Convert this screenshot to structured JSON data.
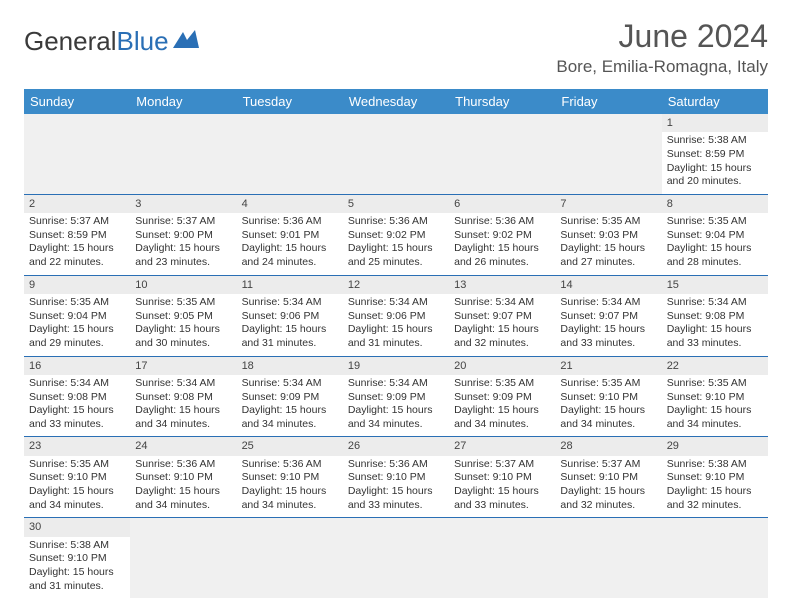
{
  "logo": {
    "text1": "General",
    "text2": "Blue"
  },
  "title": "June 2024",
  "location": "Bore, Emilia-Romagna, Italy",
  "colors": {
    "header_bg": "#3b8bc9",
    "border": "#2a6fb5",
    "daynum_bg": "#ececec",
    "empty_bg": "#f0f0f0"
  },
  "dayHeaders": [
    "Sunday",
    "Monday",
    "Tuesday",
    "Wednesday",
    "Thursday",
    "Friday",
    "Saturday"
  ],
  "weeks": [
    [
      null,
      null,
      null,
      null,
      null,
      null,
      {
        "n": "1",
        "sr": "5:38 AM",
        "ss": "8:59 PM",
        "dl": "15 hours and 20 minutes."
      }
    ],
    [
      {
        "n": "2",
        "sr": "5:37 AM",
        "ss": "8:59 PM",
        "dl": "15 hours and 22 minutes."
      },
      {
        "n": "3",
        "sr": "5:37 AM",
        "ss": "9:00 PM",
        "dl": "15 hours and 23 minutes."
      },
      {
        "n": "4",
        "sr": "5:36 AM",
        "ss": "9:01 PM",
        "dl": "15 hours and 24 minutes."
      },
      {
        "n": "5",
        "sr": "5:36 AM",
        "ss": "9:02 PM",
        "dl": "15 hours and 25 minutes."
      },
      {
        "n": "6",
        "sr": "5:36 AM",
        "ss": "9:02 PM",
        "dl": "15 hours and 26 minutes."
      },
      {
        "n": "7",
        "sr": "5:35 AM",
        "ss": "9:03 PM",
        "dl": "15 hours and 27 minutes."
      },
      {
        "n": "8",
        "sr": "5:35 AM",
        "ss": "9:04 PM",
        "dl": "15 hours and 28 minutes."
      }
    ],
    [
      {
        "n": "9",
        "sr": "5:35 AM",
        "ss": "9:04 PM",
        "dl": "15 hours and 29 minutes."
      },
      {
        "n": "10",
        "sr": "5:35 AM",
        "ss": "9:05 PM",
        "dl": "15 hours and 30 minutes."
      },
      {
        "n": "11",
        "sr": "5:34 AM",
        "ss": "9:06 PM",
        "dl": "15 hours and 31 minutes."
      },
      {
        "n": "12",
        "sr": "5:34 AM",
        "ss": "9:06 PM",
        "dl": "15 hours and 31 minutes."
      },
      {
        "n": "13",
        "sr": "5:34 AM",
        "ss": "9:07 PM",
        "dl": "15 hours and 32 minutes."
      },
      {
        "n": "14",
        "sr": "5:34 AM",
        "ss": "9:07 PM",
        "dl": "15 hours and 33 minutes."
      },
      {
        "n": "15",
        "sr": "5:34 AM",
        "ss": "9:08 PM",
        "dl": "15 hours and 33 minutes."
      }
    ],
    [
      {
        "n": "16",
        "sr": "5:34 AM",
        "ss": "9:08 PM",
        "dl": "15 hours and 33 minutes."
      },
      {
        "n": "17",
        "sr": "5:34 AM",
        "ss": "9:08 PM",
        "dl": "15 hours and 34 minutes."
      },
      {
        "n": "18",
        "sr": "5:34 AM",
        "ss": "9:09 PM",
        "dl": "15 hours and 34 minutes."
      },
      {
        "n": "19",
        "sr": "5:34 AM",
        "ss": "9:09 PM",
        "dl": "15 hours and 34 minutes."
      },
      {
        "n": "20",
        "sr": "5:35 AM",
        "ss": "9:09 PM",
        "dl": "15 hours and 34 minutes."
      },
      {
        "n": "21",
        "sr": "5:35 AM",
        "ss": "9:10 PM",
        "dl": "15 hours and 34 minutes."
      },
      {
        "n": "22",
        "sr": "5:35 AM",
        "ss": "9:10 PM",
        "dl": "15 hours and 34 minutes."
      }
    ],
    [
      {
        "n": "23",
        "sr": "5:35 AM",
        "ss": "9:10 PM",
        "dl": "15 hours and 34 minutes."
      },
      {
        "n": "24",
        "sr": "5:36 AM",
        "ss": "9:10 PM",
        "dl": "15 hours and 34 minutes."
      },
      {
        "n": "25",
        "sr": "5:36 AM",
        "ss": "9:10 PM",
        "dl": "15 hours and 34 minutes."
      },
      {
        "n": "26",
        "sr": "5:36 AM",
        "ss": "9:10 PM",
        "dl": "15 hours and 33 minutes."
      },
      {
        "n": "27",
        "sr": "5:37 AM",
        "ss": "9:10 PM",
        "dl": "15 hours and 33 minutes."
      },
      {
        "n": "28",
        "sr": "5:37 AM",
        "ss": "9:10 PM",
        "dl": "15 hours and 32 minutes."
      },
      {
        "n": "29",
        "sr": "5:38 AM",
        "ss": "9:10 PM",
        "dl": "15 hours and 32 minutes."
      }
    ],
    [
      {
        "n": "30",
        "sr": "5:38 AM",
        "ss": "9:10 PM",
        "dl": "15 hours and 31 minutes."
      },
      null,
      null,
      null,
      null,
      null,
      null
    ]
  ],
  "labels": {
    "sunrise": "Sunrise: ",
    "sunset": "Sunset: ",
    "daylight": "Daylight: "
  }
}
